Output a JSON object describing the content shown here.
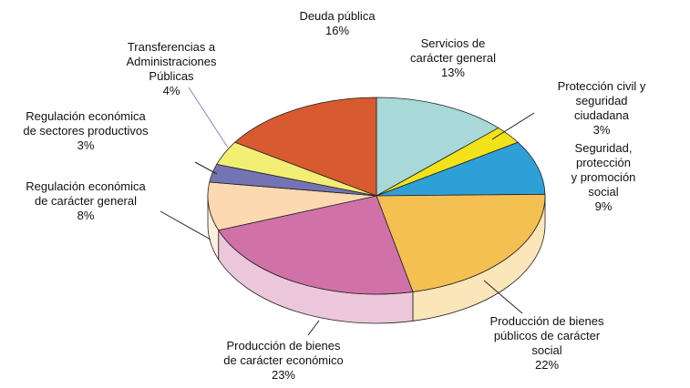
{
  "chart_data": {
    "type": "pie3d",
    "categories": [
      "Servicios de\ncarácter general",
      "Protección civil y\nseguridad ciudadana",
      "Seguridad, protección\ny promoción social",
      "Producción de bienes\npúblicos de carácter\nsocial",
      "Producción de bienes\nde carácter económico",
      "Regulación económica\nde carácter general",
      "Regulación económica\nde sectores productivos",
      "Transferencias a\nAdministraciones\nPúblicas",
      "Deuda pública"
    ],
    "values": [
      13,
      3,
      9,
      22,
      23,
      8,
      3,
      4,
      16
    ],
    "value_labels": [
      "13%",
      "3%",
      "9%",
      "22%",
      "23%",
      "8%",
      "3%",
      "4%",
      "16%"
    ],
    "colors": [
      "#a8d8d8",
      "#f2e21a",
      "#2f9fd8",
      "#f5c052",
      "#d072a8",
      "#fcd9b0",
      "#7474b4",
      "#f2ee74",
      "#d85a30"
    ]
  }
}
